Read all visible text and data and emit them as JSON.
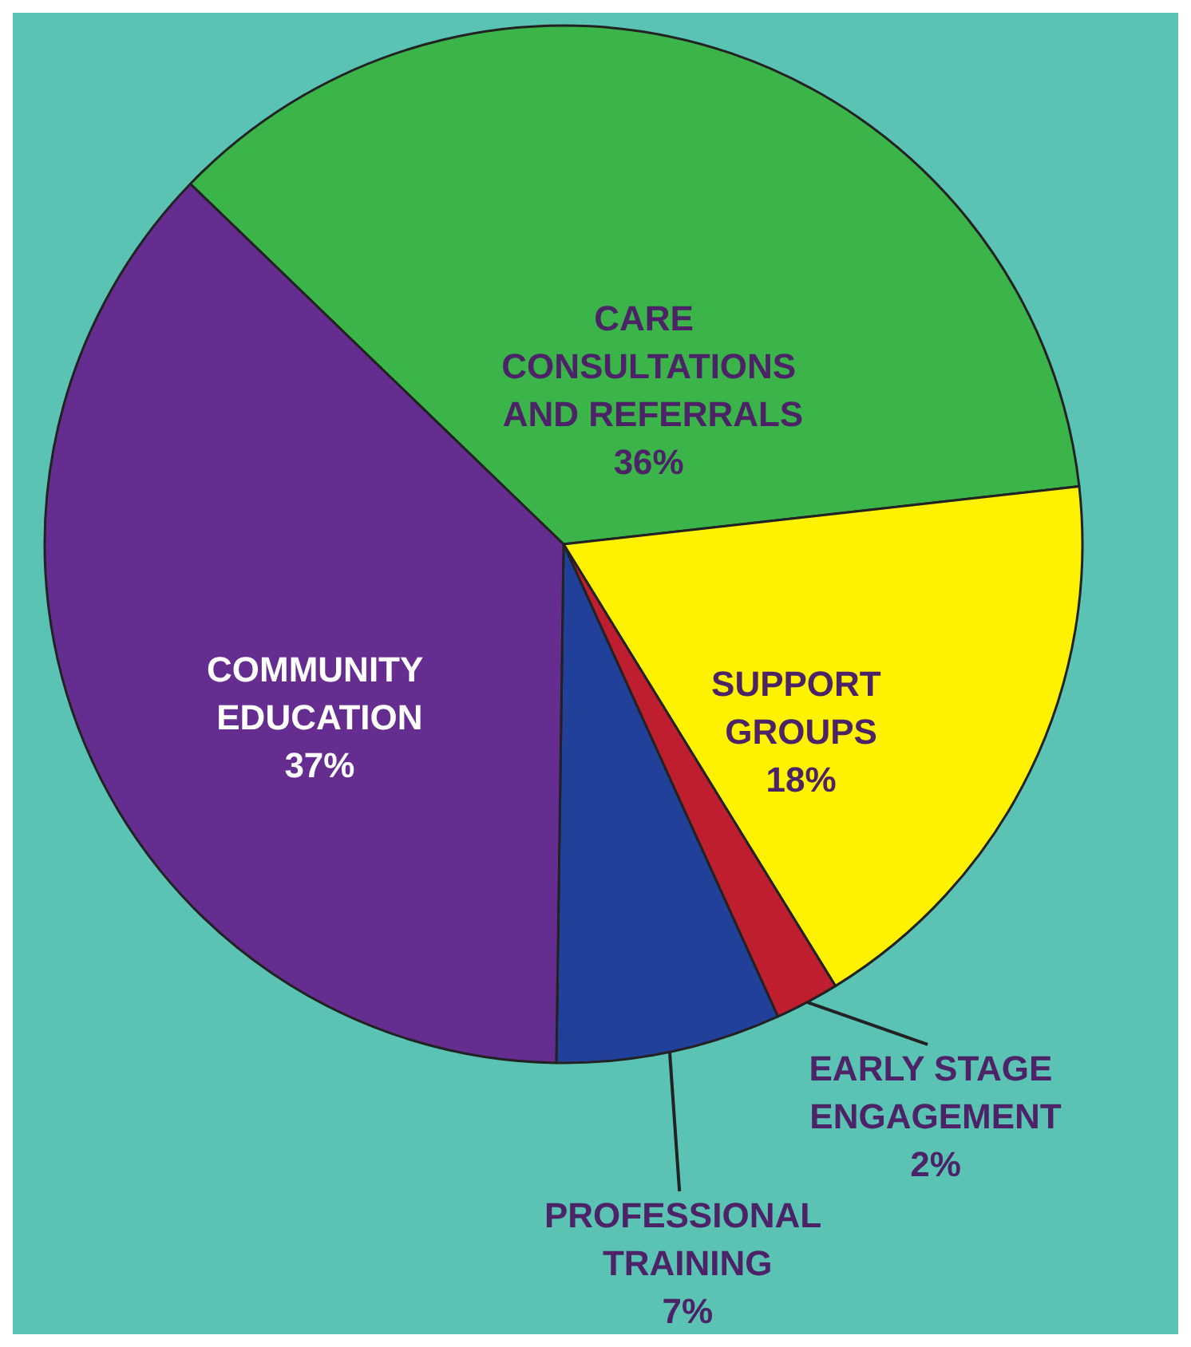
{
  "chart_data": {
    "type": "pie",
    "categories": [
      "CARE CONSULTATIONS AND REFERRALS",
      "SUPPORT GROUPS",
      "EARLY STAGE ENGAGEMENT",
      "PROFESSIONAL TRAINING",
      "COMMUNITY EDUCATION"
    ],
    "values": [
      36,
      18,
      2,
      7,
      37
    ],
    "value_labels": [
      "36%",
      "18%",
      "2%",
      "7%",
      "37%"
    ],
    "colors": [
      "#3bb54a",
      "#fff200",
      "#be1e2d",
      "#21409a",
      "#662d91"
    ],
    "legend": false
  }
}
